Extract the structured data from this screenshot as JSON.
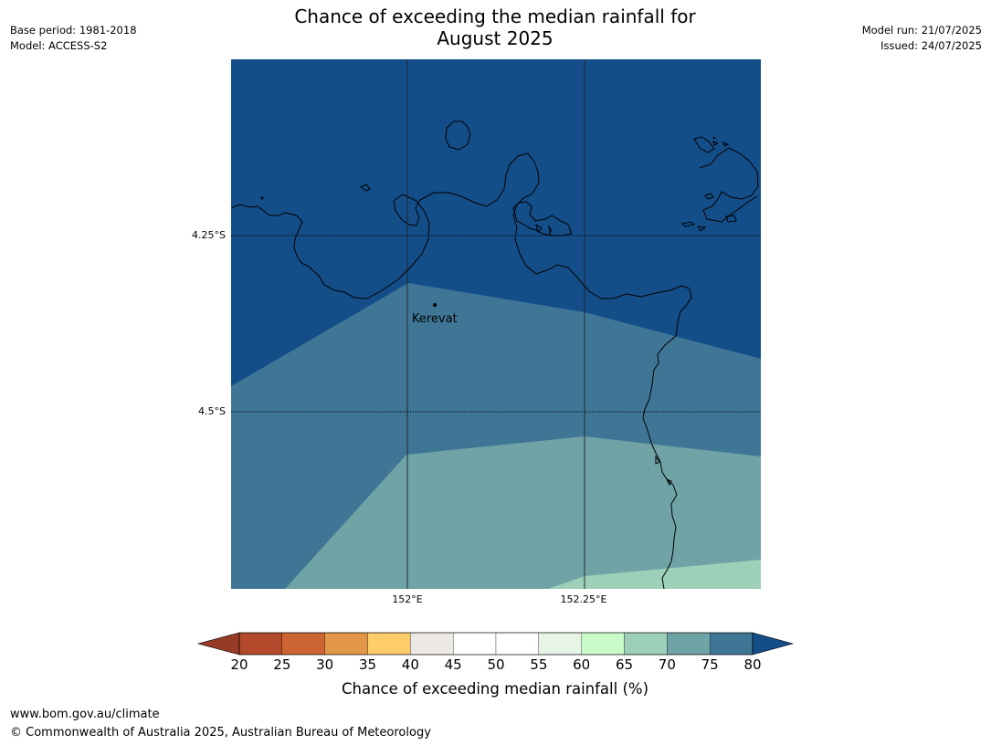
{
  "header": {
    "title_line1": "Chance of exceeding the median rainfall for",
    "title_line2": "August 2025",
    "base_period": "Base period: 1981-2018",
    "model": "Model: ACCESS-S2",
    "model_run": "Model run: 21/07/2025",
    "issued": "Issued: 24/07/2025"
  },
  "map": {
    "lat_ticks": [
      "4.25°S",
      "4.5°S"
    ],
    "lon_ticks": [
      "152°E",
      "152.25°E"
    ],
    "place": "Kerevat",
    "zone_colors": {
      "band_70_80": "#3f7696",
      "band_65_70": "#6fa3a5",
      "band_60_65": "#9dcfb9",
      "above_80": "#144e89"
    }
  },
  "colorbar": {
    "ticks": [
      "20",
      "25",
      "30",
      "35",
      "40",
      "45",
      "50",
      "55",
      "60",
      "65",
      "70",
      "75",
      "80"
    ],
    "colors": [
      "#b4482a",
      "#cc6533",
      "#e29748",
      "#fecc68",
      "#ece8e3",
      "#ffffff",
      "#ffffff",
      "#e7f5e6",
      "#c8fbc8",
      "#9dcfb9",
      "#6fa3a5",
      "#3f7696"
    ],
    "low_color": "#973b26",
    "high_color": "#144e89",
    "label": "Chance of exceeding median rainfall (%)"
  },
  "footer": {
    "url": "www.bom.gov.au/climate",
    "copyright": "© Commonwealth of Australia 2025, Australian Bureau of Meteorology"
  }
}
